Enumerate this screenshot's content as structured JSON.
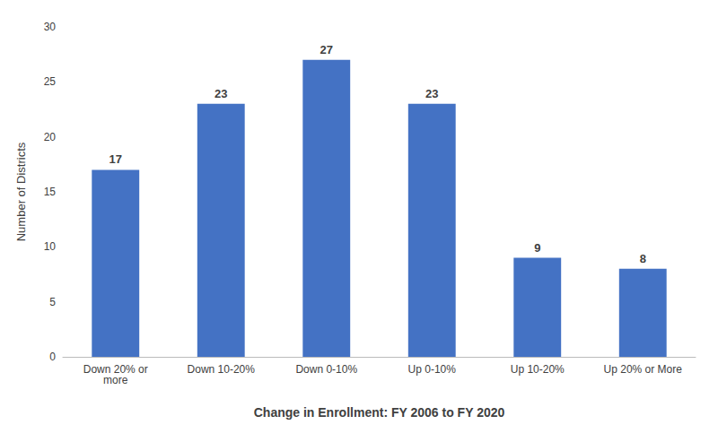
{
  "chart_data": {
    "type": "bar",
    "categories": [
      "Down 20% or\nmore",
      "Down 10-20%",
      "Down 0-10%",
      "Up 0-10%",
      "Up 10-20%",
      "Up 20% or More"
    ],
    "values": [
      17,
      23,
      27,
      23,
      9,
      8
    ],
    "color": "#4472c4",
    "xlabel": "Change in Enrollment: FY 2006 to FY 2020",
    "ylabel": "Number of Districts",
    "ylim": [
      0,
      30
    ],
    "yticks": [
      0,
      5,
      10,
      15,
      20,
      25,
      30
    ],
    "grid": false,
    "data_labels": true
  }
}
